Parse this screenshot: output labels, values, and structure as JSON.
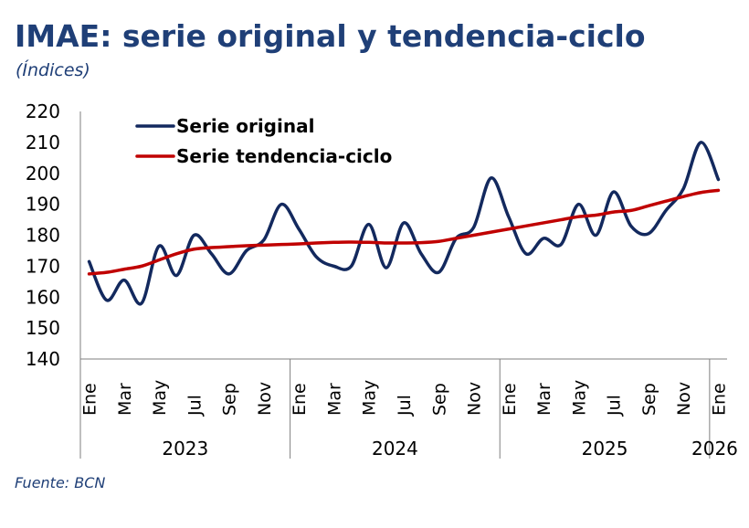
{
  "title": "IMAE: serie original y tendencia-ciclo",
  "subtitle": "(Índices)",
  "source": "Fuente: BCN",
  "colors": {
    "title": "#1f3f77",
    "original": "#13295e",
    "trend": "#c00000",
    "axis": "#7f7f7f"
  },
  "chart_data": {
    "type": "line",
    "title": "IMAE: serie original y tendencia-ciclo",
    "subtitle": "(Índices)",
    "ylim": [
      140,
      220
    ],
    "yticks": [
      140,
      150,
      160,
      170,
      180,
      190,
      200,
      210,
      220
    ],
    "xtick_labels": [
      "Ene",
      "Mar",
      "May",
      "Jul",
      "Sep",
      "Nov",
      "Ene",
      "Mar",
      "May",
      "Jul",
      "Sep",
      "Nov",
      "Ene",
      "Mar",
      "May",
      "Jul",
      "Sep",
      "Nov",
      "Ene"
    ],
    "years": [
      "2023",
      "2024",
      "2025",
      "2026"
    ],
    "x": [
      "2023-01",
      "2023-02",
      "2023-03",
      "2023-04",
      "2023-05",
      "2023-06",
      "2023-07",
      "2023-08",
      "2023-09",
      "2023-10",
      "2023-11",
      "2023-12",
      "2024-01",
      "2024-02",
      "2024-03",
      "2024-04",
      "2024-05",
      "2024-06",
      "2024-07",
      "2024-08",
      "2024-09",
      "2024-10",
      "2024-11",
      "2024-12",
      "2025-01",
      "2025-02",
      "2025-03",
      "2025-04",
      "2025-05",
      "2025-06",
      "2025-07",
      "2025-08",
      "2025-09",
      "2025-10",
      "2025-11",
      "2025-12",
      "2026-01"
    ],
    "grid": false,
    "legend_position": "top-left",
    "series": [
      {
        "name": "Serie original",
        "color": "#13295e",
        "values": [
          171.5,
          159,
          165.5,
          158,
          176.5,
          167,
          180,
          174,
          167.5,
          175,
          178.5,
          190,
          182,
          173,
          170,
          170,
          183.5,
          169.5,
          184,
          174,
          168,
          179,
          182.5,
          198.5,
          186,
          174,
          179,
          177,
          190,
          180,
          194,
          183,
          180.5,
          188,
          195,
          210,
          198
        ]
      },
      {
        "name": "Serie tendencia-ciclo",
        "color": "#c00000",
        "values": [
          167.5,
          168,
          169,
          170,
          172,
          174,
          175.5,
          176,
          176.3,
          176.6,
          176.8,
          177,
          177.2,
          177.5,
          177.7,
          177.8,
          177.7,
          177.5,
          177.5,
          177.6,
          178,
          179,
          180,
          181,
          182,
          183,
          184,
          185,
          186,
          186.5,
          187.5,
          188,
          189.5,
          191,
          192.5,
          193.8,
          194.5
        ]
      }
    ]
  }
}
